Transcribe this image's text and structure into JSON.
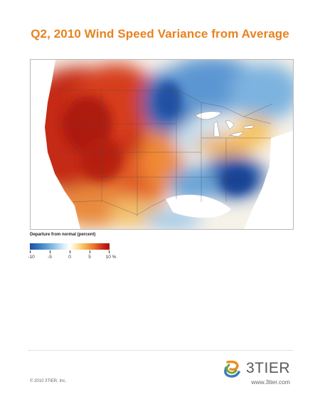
{
  "title": "Q2, 2010 Wind Speed Variance from Average",
  "legend": {
    "title": "Departure from normal (percent)",
    "ticks": [
      {
        "label": "-10",
        "value": -10
      },
      {
        "label": "-5",
        "value": -5
      },
      {
        "label": "0",
        "value": 0
      },
      {
        "label": "5",
        "value": 5
      },
      {
        "label": "10 %",
        "value": 10
      }
    ],
    "range": [
      -10,
      10
    ]
  },
  "colors": {
    "title": "#e8821e",
    "negative": "#1e4fa3",
    "positive": "#c62316",
    "neutral": "#ffffff",
    "brand_text": "#565a5c"
  },
  "brand": {
    "name": "3TIER",
    "logo_icon": "3tier-swirl-logo-icon",
    "url": "www.3tier.com"
  },
  "copyright": "© 2010 3TIER, Inc."
}
